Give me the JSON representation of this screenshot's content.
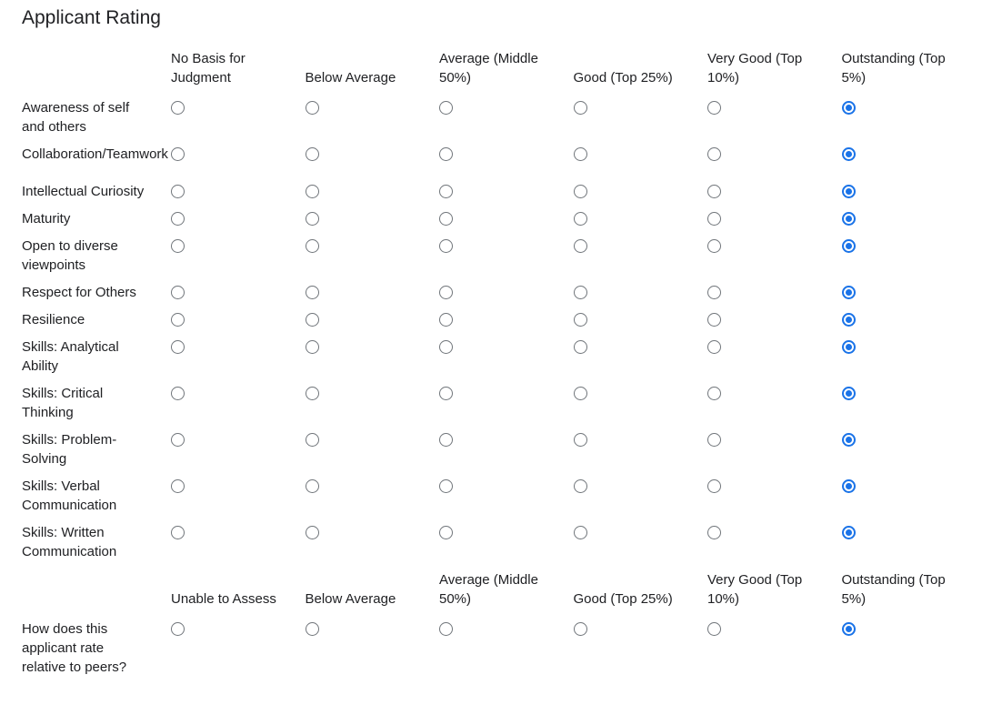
{
  "page": {
    "title": "Applicant Rating"
  },
  "colors": {
    "background": "#ffffff",
    "text": "#202124",
    "radio_selected": "#1a73e8",
    "radio_unselected_border": "#70757a"
  },
  "rating_grid": {
    "columns": [
      "No Basis for Judgment",
      "Below Average",
      "Average (Middle 50%)",
      "Good (Top 25%)",
      "Very Good (Top 10%)",
      "Outstanding (Top 5%)"
    ],
    "rows": [
      {
        "label": "Awareness of self and others",
        "selected": "Outstanding (Top 5%)",
        "selected_index": 5
      },
      {
        "label": "Collaboration/Teamwork",
        "selected": "Outstanding (Top 5%)",
        "selected_index": 5
      },
      {
        "label": "Intellectual Curiosity",
        "selected": "Outstanding (Top 5%)",
        "selected_index": 5
      },
      {
        "label": "Maturity",
        "selected": "Outstanding (Top 5%)",
        "selected_index": 5
      },
      {
        "label": "Open to diverse viewpoints",
        "selected": "Outstanding (Top 5%)",
        "selected_index": 5
      },
      {
        "label": "Respect for Others",
        "selected": "Outstanding (Top 5%)",
        "selected_index": 5
      },
      {
        "label": "Resilience",
        "selected": "Outstanding (Top 5%)",
        "selected_index": 5
      },
      {
        "label": "Skills: Analytical Ability",
        "selected": "Outstanding (Top 5%)",
        "selected_index": 5
      },
      {
        "label": "Skills: Critical Thinking",
        "selected": "Outstanding (Top 5%)",
        "selected_index": 5
      },
      {
        "label": "Skills: Problem-Solving",
        "selected": "Outstanding (Top 5%)",
        "selected_index": 5
      },
      {
        "label": "Skills: Verbal Communication",
        "selected": "Outstanding (Top 5%)",
        "selected_index": 5
      },
      {
        "label": "Skills: Written Communication",
        "selected": "Outstanding (Top 5%)",
        "selected_index": 5
      }
    ]
  },
  "peer_grid": {
    "columns": [
      "Unable to Assess",
      "Below Average",
      "Average (Middle 50%)",
      "Good (Top 25%)",
      "Very Good (Top 10%)",
      "Outstanding (Top 5%)"
    ],
    "rows": [
      {
        "label": "How does this applicant rate relative to peers?",
        "selected": "Outstanding (Top 5%)",
        "selected_index": 5
      }
    ]
  }
}
